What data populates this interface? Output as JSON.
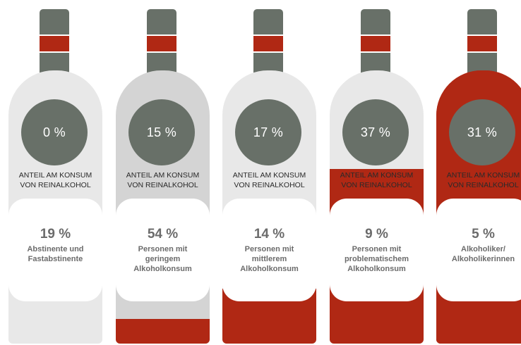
{
  "chart_data": {
    "type": "bar",
    "categories": [
      "Abstinente und Fastabstinente",
      "Personen mit geringem Alkoholkonsum",
      "Personen mit mittlerem Alkoholkonsum",
      "Personen mit problematischem Alkoholkonsum",
      "Alkoholiker/ Alkoholikerinnen"
    ],
    "share_label": [
      "ANTEIL AM KONSUM",
      "VON REINALKOHOL"
    ],
    "series": [
      {
        "name": "",
        "values": [
          19,
          54,
          14,
          9,
          5
        ]
      },
      {
        "name": "",
        "values": [
          0,
          15,
          17,
          37,
          31
        ]
      }
    ],
    "items": [
      {
        "population_pct": "19 %",
        "consumption_pct": "0 %",
        "desc": [
          "Abstinente und",
          "Fastabstinente"
        ],
        "body_color": "#e8e8e8",
        "fill_fraction": 0.0
      },
      {
        "population_pct": "54 %",
        "consumption_pct": "15 %",
        "desc": [
          "Personen mit",
          "geringem",
          "Alkoholkonsum"
        ],
        "body_color": "#d4d4d4",
        "fill_fraction": 0.09
      },
      {
        "population_pct": "14 %",
        "consumption_pct": "17 %",
        "desc": [
          "Personen mit",
          "mittlerem",
          "Alkoholkonsum"
        ],
        "body_color": "#e8e8e8",
        "fill_fraction": 0.2
      },
      {
        "population_pct": "9 %",
        "consumption_pct": "37 %",
        "desc": [
          "Personen mit",
          "problematischem",
          "Alkoholkonsum"
        ],
        "body_color": "#e8e8e8",
        "fill_fraction": 0.64
      },
      {
        "population_pct": "5 %",
        "consumption_pct": "31 %",
        "desc": [
          "Alkoholiker/",
          "Alkoholikerinnen"
        ],
        "body_color": "#b02814",
        "fill_fraction": 1.0
      }
    ],
    "colors": {
      "accent": "#b02814",
      "circle": "#687068",
      "bottle": "#e8e8e8",
      "text": "#6b6b6b"
    }
  }
}
